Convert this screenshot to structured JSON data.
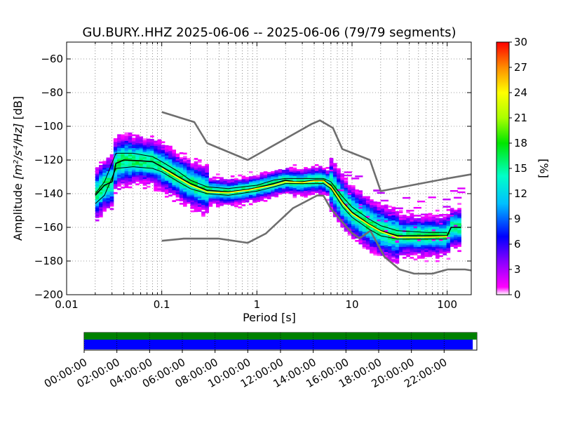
{
  "chart_data": {
    "type": "heatmap",
    "title": "GU.BURY..HHZ   2025-06-06 -- 2025-06-06  (79/79 segments)",
    "xlabel": "Period [s]",
    "ylabel_prefix": "Amplitude ",
    "ylabel_units": "[m²/s⁴/Hz]",
    "ylabel_suffix": " [dB]",
    "xscale": "log",
    "xlim": [
      0.01,
      179
    ],
    "ylim": [
      -200,
      -50
    ],
    "x_ticks": [
      {
        "value": 0.01,
        "label": "0.01"
      },
      {
        "value": 0.1,
        "label": "0.1"
      },
      {
        "value": 1,
        "label": "1"
      },
      {
        "value": 10,
        "label": "10"
      },
      {
        "value": 100,
        "label": "100"
      }
    ],
    "y_ticks": [
      {
        "value": -60,
        "label": "−60"
      },
      {
        "value": -80,
        "label": "−80"
      },
      {
        "value": -100,
        "label": "−100"
      },
      {
        "value": -120,
        "label": "−120"
      },
      {
        "value": -140,
        "label": "−140"
      },
      {
        "value": -160,
        "label": "−160"
      },
      {
        "value": -180,
        "label": "−180"
      },
      {
        "value": -200,
        "label": "−200"
      }
    ],
    "grid": true,
    "colorbar": {
      "label": "[%]",
      "range": [
        0,
        30
      ],
      "ticks": [
        {
          "value": 0,
          "label": "0"
        },
        {
          "value": 3,
          "label": "3"
        },
        {
          "value": 6,
          "label": "6"
        },
        {
          "value": 9,
          "label": "9"
        },
        {
          "value": 12,
          "label": "12"
        },
        {
          "value": 15,
          "label": "15"
        },
        {
          "value": 18,
          "label": "18"
        },
        {
          "value": 21,
          "label": "21"
        },
        {
          "value": 24,
          "label": "24"
        },
        {
          "value": 27,
          "label": "27"
        },
        {
          "value": 30,
          "label": "30"
        }
      ],
      "colors": [
        "#ffffff",
        "#ff00ff",
        "#8a00ff",
        "#0000ff",
        "#00bfff",
        "#00ffc8",
        "#00e600",
        "#aaff00",
        "#ffff00",
        "#ff8c00",
        "#ff0000"
      ]
    },
    "series": [
      {
        "role": "noise-model-high",
        "color": "#6e6e6e",
        "points": [
          [
            0.1,
            -91.5
          ],
          [
            0.22,
            -97.5
          ],
          [
            0.3,
            -110
          ],
          [
            0.8,
            -120
          ],
          [
            3.8,
            -98.5
          ],
          [
            4.6,
            -96.5
          ],
          [
            6.3,
            -101
          ],
          [
            7.9,
            -113.5
          ],
          [
            15.4,
            -120
          ],
          [
            20,
            -138.5
          ],
          [
            100,
            -131
          ],
          [
            179,
            -128.5
          ]
        ]
      },
      {
        "role": "noise-model-low",
        "color": "#6e6e6e",
        "points": [
          [
            0.1,
            -168
          ],
          [
            0.17,
            -166.7
          ],
          [
            0.4,
            -166.7
          ],
          [
            0.8,
            -169.2
          ],
          [
            1.24,
            -163.7
          ],
          [
            2.4,
            -148.6
          ],
          [
            4.3,
            -141.1
          ],
          [
            5,
            -141.2
          ],
          [
            6,
            -149
          ],
          [
            10,
            -163.5
          ],
          [
            12,
            -166.5
          ],
          [
            15.6,
            -162
          ],
          [
            21.9,
            -177.5
          ],
          [
            31.6,
            -185
          ],
          [
            45,
            -187.5
          ],
          [
            70,
            -187.5
          ],
          [
            101,
            -185
          ],
          [
            154,
            -185
          ],
          [
            179,
            -185.6
          ]
        ]
      },
      {
        "role": "median",
        "color": "#000000",
        "points": [
          [
            0.02,
            -141
          ],
          [
            0.025,
            -135
          ],
          [
            0.03,
            -133
          ],
          [
            0.033,
            -122
          ],
          [
            0.04,
            -120
          ],
          [
            0.06,
            -120.5
          ],
          [
            0.08,
            -121
          ],
          [
            0.1,
            -124
          ],
          [
            0.15,
            -130
          ],
          [
            0.2,
            -134
          ],
          [
            0.3,
            -138
          ],
          [
            0.5,
            -139
          ],
          [
            0.8,
            -137.5
          ],
          [
            1,
            -136.5
          ],
          [
            1.5,
            -134
          ],
          [
            2,
            -132
          ],
          [
            2.5,
            -133
          ],
          [
            3,
            -133
          ],
          [
            4,
            -132
          ],
          [
            5,
            -132
          ],
          [
            6,
            -135
          ],
          [
            8,
            -145
          ],
          [
            10,
            -151
          ],
          [
            15,
            -158
          ],
          [
            20,
            -162
          ],
          [
            30,
            -165
          ],
          [
            50,
            -165
          ],
          [
            70,
            -165
          ],
          [
            100,
            -165
          ],
          [
            110,
            -160
          ],
          [
            140,
            -160
          ]
        ]
      },
      {
        "role": "mode",
        "color": "#ffff00",
        "points": [
          [
            0.1,
            -125
          ],
          [
            0.2,
            -135
          ],
          [
            0.3,
            -139
          ],
          [
            0.5,
            -139.5
          ],
          [
            0.8,
            -138
          ],
          [
            1.5,
            -135
          ],
          [
            2,
            -133
          ],
          [
            3,
            -133.5
          ],
          [
            4,
            -132.5
          ],
          [
            5,
            -132.5
          ],
          [
            6,
            -136
          ],
          [
            8,
            -146
          ],
          [
            10,
            -152
          ],
          [
            15,
            -158.5
          ],
          [
            20,
            -162.5
          ],
          [
            30,
            -166
          ],
          [
            50,
            -166
          ],
          [
            100,
            -165.5
          ]
        ]
      },
      {
        "role": "envelope-upper",
        "color": "#000000",
        "points": [
          [
            0.02,
            -140
          ],
          [
            0.025,
            -133
          ],
          [
            0.033,
            -116
          ],
          [
            0.05,
            -116
          ],
          [
            0.08,
            -118
          ],
          [
            0.1,
            -121
          ],
          [
            0.15,
            -127
          ],
          [
            0.2,
            -132
          ],
          [
            0.3,
            -136
          ],
          [
            0.5,
            -137
          ],
          [
            1,
            -135
          ],
          [
            1.5,
            -132
          ],
          [
            2,
            -131
          ],
          [
            4,
            -131
          ],
          [
            5,
            -131
          ],
          [
            6,
            -133
          ],
          [
            8,
            -142
          ],
          [
            10,
            -148
          ],
          [
            15,
            -155
          ],
          [
            20,
            -159
          ],
          [
            30,
            -162
          ],
          [
            60,
            -163
          ],
          [
            100,
            -163
          ]
        ]
      },
      {
        "role": "envelope-lower",
        "color": "#000000",
        "points": [
          [
            0.02,
            -146
          ],
          [
            0.025,
            -141
          ],
          [
            0.033,
            -125
          ],
          [
            0.05,
            -124
          ],
          [
            0.08,
            -125
          ],
          [
            0.1,
            -127
          ],
          [
            0.15,
            -133
          ],
          [
            0.2,
            -137
          ],
          [
            0.3,
            -140
          ],
          [
            0.5,
            -141
          ],
          [
            1,
            -138.5
          ],
          [
            1.5,
            -136
          ],
          [
            2,
            -134
          ],
          [
            4,
            -134
          ],
          [
            5,
            -134
          ],
          [
            6,
            -137
          ],
          [
            8,
            -148
          ],
          [
            10,
            -154
          ],
          [
            15,
            -161
          ],
          [
            20,
            -165
          ],
          [
            30,
            -167
          ],
          [
            60,
            -167
          ],
          [
            100,
            -167
          ]
        ]
      }
    ],
    "timeline": {
      "tick_labels": [
        "00:00:00",
        "02:00:00",
        "04:00:00",
        "06:00:00",
        "08:00:00",
        "10:00:00",
        "12:00:00",
        "14:00:00",
        "16:00:00",
        "18:00:00",
        "20:00:00",
        "22:00:00"
      ],
      "range_hours": [
        0,
        24
      ],
      "upper_bar": {
        "color": "#008000",
        "end_hours": 24
      },
      "lower_bar": {
        "color": "#0000ff",
        "end_hours": 23.75
      }
    }
  }
}
